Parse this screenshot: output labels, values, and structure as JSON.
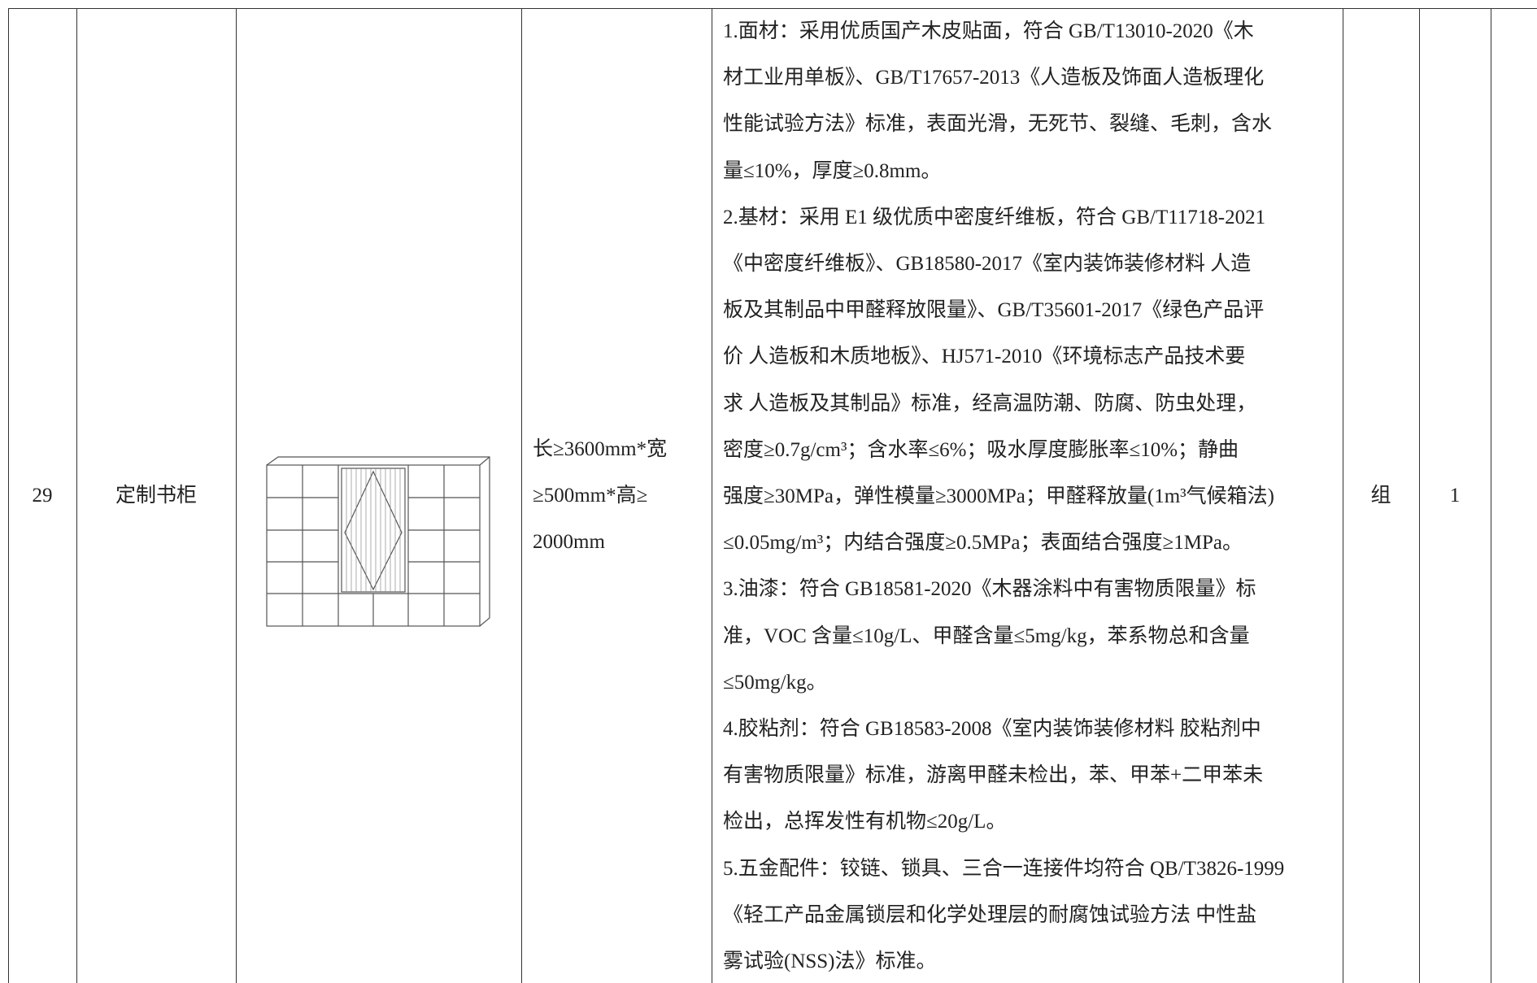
{
  "table": {
    "rows": [
      {
        "number": "29",
        "name": "定制书柜",
        "spec_lines": [
          "长≥3600mm*宽",
          "≥500mm*高≥",
          "2000mm"
        ],
        "description_lines": [
          "1.面材：采用优质国产木皮贴面，符合 GB/T13010-2020《木",
          "材工业用单板》、GB/T17657-2013《人造板及饰面人造板理化",
          "性能试验方法》标准，表面光滑，无死节、裂缝、毛刺，含水",
          "量≤10%，厚度≥0.8mm。",
          "2.基材：采用 E1 级优质中密度纤维板，符合 GB/T11718-2021",
          "《中密度纤维板》、GB18580-2017《室内装饰装修材料 人造",
          "板及其制品中甲醛释放限量》、GB/T35601-2017《绿色产品评",
          "价 人造板和木质地板》、HJ571-2010《环境标志产品技术要",
          "求 人造板及其制品》标准，经高温防潮、防腐、防虫处理，",
          "密度≥0.7g/cm³；含水率≤6%；吸水厚度膨胀率≤10%；静曲",
          "强度≥30MPa，弹性模量≥3000MPa；甲醛释放量(1m³气候箱法)",
          "≤0.05mg/m³；内结合强度≥0.5MPa；表面结合强度≥1MPa。",
          "3.油漆：符合 GB18581-2020《木器涂料中有害物质限量》标",
          "准，VOC 含量≤10g/L、甲醛含量≤5mg/kg，苯系物总和含量",
          "≤50mg/kg。",
          "4.胶粘剂：符合 GB18583-2008《室内装饰装修材料 胶粘剂中",
          "有害物质限量》标准，游离甲醛未检出，苯、甲苯+二甲苯未",
          "检出，总挥发性有机物≤20g/L。",
          "5.五金配件：铰链、锁具、三合一连接件均符合 QB/T3826-1999",
          "《轻工产品金属锁层和化学处理层的耐腐蚀试验方法 中性盐",
          "雾试验(NSS)法》标准。"
        ],
        "unit": "组",
        "quantity": "1"
      }
    ]
  }
}
